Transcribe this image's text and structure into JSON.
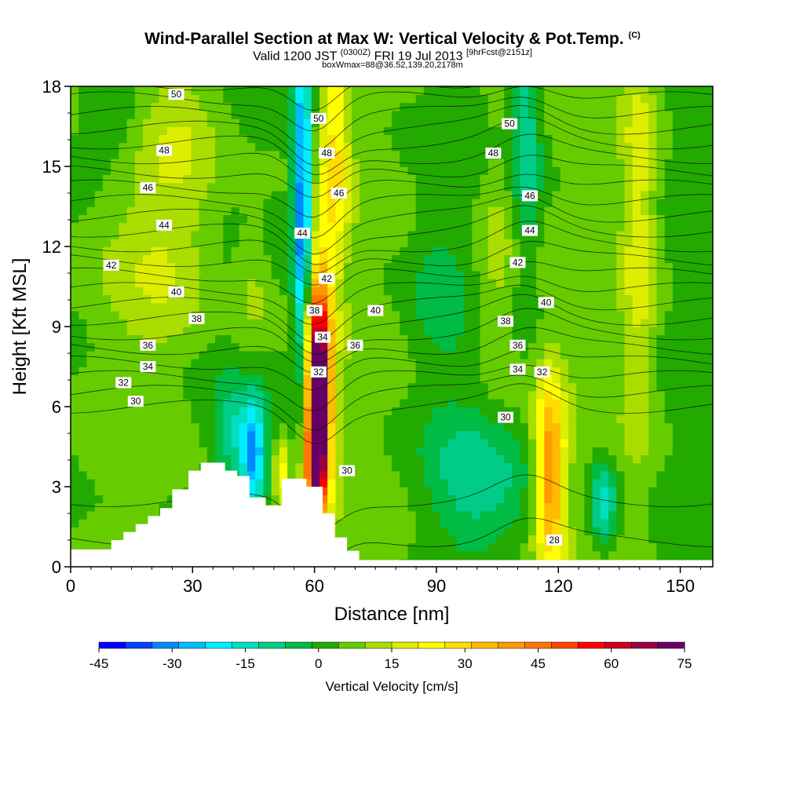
{
  "header": {
    "title_main": "Wind-Parallel Section at Max W: Vertical Velocity & Pot.Temp.",
    "title_mark": "(C)",
    "valid_prefix": "Valid 1200 JST",
    "valid_utc": "(0300Z)",
    "valid_date": "FRI 19 Jul 2013",
    "forecast_tag": "[9hrFcst@2151z]",
    "box_info": "boxWmax=88@36.52,139.20,2178m"
  },
  "chart_data": {
    "type": "heatmap",
    "xlabel": "Distance [nm]",
    "ylabel": "Height [Kft MSL]",
    "xlim": [
      0,
      158
    ],
    "ylim": [
      0,
      18
    ],
    "x_ticks": [
      0,
      30,
      60,
      90,
      120,
      150
    ],
    "y_ticks": [
      0,
      3,
      6,
      9,
      12,
      15,
      18
    ],
    "terrain": [
      [
        0,
        0.65
      ],
      [
        10,
        0.65
      ],
      [
        10,
        1.0
      ],
      [
        13,
        1.0
      ],
      [
        13,
        1.3
      ],
      [
        16,
        1.3
      ],
      [
        16,
        1.6
      ],
      [
        19,
        1.6
      ],
      [
        19,
        1.9
      ],
      [
        22,
        1.9
      ],
      [
        22,
        2.2
      ],
      [
        25,
        2.2
      ],
      [
        25,
        2.9
      ],
      [
        29,
        2.9
      ],
      [
        29,
        3.6
      ],
      [
        32,
        3.6
      ],
      [
        32,
        3.9
      ],
      [
        38,
        3.9
      ],
      [
        38,
        3.6
      ],
      [
        41,
        3.6
      ],
      [
        41,
        3.4
      ],
      [
        44,
        3.4
      ],
      [
        44,
        2.6
      ],
      [
        48,
        2.6
      ],
      [
        48,
        2.3
      ],
      [
        52,
        2.3
      ],
      [
        52,
        3.3
      ],
      [
        58,
        3.3
      ],
      [
        58,
        3.0
      ],
      [
        62,
        3.0
      ],
      [
        62,
        2.0
      ],
      [
        65,
        2.0
      ],
      [
        65,
        1.1
      ],
      [
        68,
        1.1
      ],
      [
        68,
        0.6
      ],
      [
        71,
        0.6
      ],
      [
        71,
        0.25
      ],
      [
        158,
        0.25
      ]
    ],
    "w_features": [
      {
        "x": 61,
        "y": 6.5,
        "sx": 2.2,
        "sy": 3.2,
        "w": 80
      },
      {
        "x": 60,
        "y": 3.8,
        "sx": 1.6,
        "sy": 1.4,
        "w": 30
      },
      {
        "x": 65,
        "y": 15.5,
        "sx": 2.4,
        "sy": 3.5,
        "w": 22
      },
      {
        "x": 57,
        "y": 13.5,
        "sx": 1.5,
        "sy": 4.5,
        "w": -40
      },
      {
        "x": 45,
        "y": 4.2,
        "sx": 2.0,
        "sy": 1.4,
        "w": -32
      },
      {
        "x": 40,
        "y": 5.0,
        "sx": 3.0,
        "sy": 1.2,
        "w": -14
      },
      {
        "x": 52,
        "y": 3.5,
        "sx": 1.3,
        "sy": 1.0,
        "w": 18
      },
      {
        "x": 118,
        "y": 3.5,
        "sx": 2.6,
        "sy": 2.6,
        "w": 38
      },
      {
        "x": 131,
        "y": 2.4,
        "sx": 2.2,
        "sy": 1.1,
        "w": -22
      },
      {
        "x": 100,
        "y": 3.2,
        "sx": 9.0,
        "sy": 1.8,
        "w": -12
      },
      {
        "x": 112,
        "y": 16.0,
        "sx": 2.5,
        "sy": 3.5,
        "w": -15
      },
      {
        "x": 140,
        "y": 13.0,
        "sx": 3.0,
        "sy": 6.0,
        "w": 14
      },
      {
        "x": 27,
        "y": 15.5,
        "sx": 9.0,
        "sy": 3.0,
        "w": 10
      },
      {
        "x": 12,
        "y": 17.0,
        "sx": 6.0,
        "sy": 1.5,
        "w": -10
      },
      {
        "x": 45,
        "y": 10.5,
        "sx": 3.5,
        "sy": 2.0,
        "w": 8
      },
      {
        "x": 22,
        "y": 10.5,
        "sx": 8.0,
        "sy": 2.5,
        "w": 6
      },
      {
        "x": 105,
        "y": 11.5,
        "sx": 4.0,
        "sy": 3.5,
        "w": 9
      },
      {
        "x": 90,
        "y": 10.0,
        "sx": 5.0,
        "sy": 2.5,
        "w": -6
      }
    ],
    "theta_labels": [
      {
        "v": "50",
        "x": 26,
        "y": 17.7
      },
      {
        "v": "48",
        "x": 23,
        "y": 15.6
      },
      {
        "v": "46",
        "x": 19,
        "y": 14.2
      },
      {
        "v": "44",
        "x": 23,
        "y": 12.8
      },
      {
        "v": "42",
        "x": 10,
        "y": 11.3
      },
      {
        "v": "40",
        "x": 26,
        "y": 10.3
      },
      {
        "v": "38",
        "x": 31,
        "y": 9.3
      },
      {
        "v": "36",
        "x": 19,
        "y": 8.3
      },
      {
        "v": "34",
        "x": 19,
        "y": 7.5
      },
      {
        "v": "32",
        "x": 13,
        "y": 6.9
      },
      {
        "v": "30",
        "x": 16,
        "y": 6.2
      },
      {
        "v": "50",
        "x": 61,
        "y": 16.8
      },
      {
        "v": "48",
        "x": 63,
        "y": 15.5
      },
      {
        "v": "46",
        "x": 66,
        "y": 14.0
      },
      {
        "v": "44",
        "x": 57,
        "y": 12.5
      },
      {
        "v": "42",
        "x": 63,
        "y": 10.8
      },
      {
        "v": "38",
        "x": 60,
        "y": 9.6
      },
      {
        "v": "34",
        "x": 62,
        "y": 8.6
      },
      {
        "v": "32",
        "x": 61,
        "y": 7.3
      },
      {
        "v": "40",
        "x": 75,
        "y": 9.6
      },
      {
        "v": "36",
        "x": 70,
        "y": 8.3
      },
      {
        "v": "30",
        "x": 68,
        "y": 3.6
      },
      {
        "v": "50",
        "x": 108,
        "y": 16.6
      },
      {
        "v": "48",
        "x": 104,
        "y": 15.5
      },
      {
        "v": "46",
        "x": 113,
        "y": 13.9
      },
      {
        "v": "44",
        "x": 113,
        "y": 12.6
      },
      {
        "v": "42",
        "x": 110,
        "y": 11.4
      },
      {
        "v": "40",
        "x": 117,
        "y": 9.9
      },
      {
        "v": "38",
        "x": 107,
        "y": 9.2
      },
      {
        "v": "36",
        "x": 110,
        "y": 8.3
      },
      {
        "v": "34",
        "x": 110,
        "y": 7.4
      },
      {
        "v": "32",
        "x": 116,
        "y": 7.3
      },
      {
        "v": "30",
        "x": 107,
        "y": 5.6
      },
      {
        "v": "28",
        "x": 119,
        "y": 1.0
      }
    ],
    "colorbar": {
      "title": "Vertical Velocity [cm/s]",
      "tick_labels": [
        "-45",
        "-30",
        "-15",
        "0",
        "15",
        "30",
        "45",
        "60",
        "75"
      ],
      "colors": [
        "#0000ff",
        "#0044ff",
        "#0088ff",
        "#00bbff",
        "#00eeff",
        "#00e0c0",
        "#00cc88",
        "#00bb44",
        "#22aa00",
        "#66cc00",
        "#aadd00",
        "#ddee00",
        "#ffff00",
        "#ffdd00",
        "#ffbb00",
        "#ff9900",
        "#ff7700",
        "#ff4400",
        "#ff0000",
        "#cc0022",
        "#990044",
        "#660066"
      ]
    }
  }
}
